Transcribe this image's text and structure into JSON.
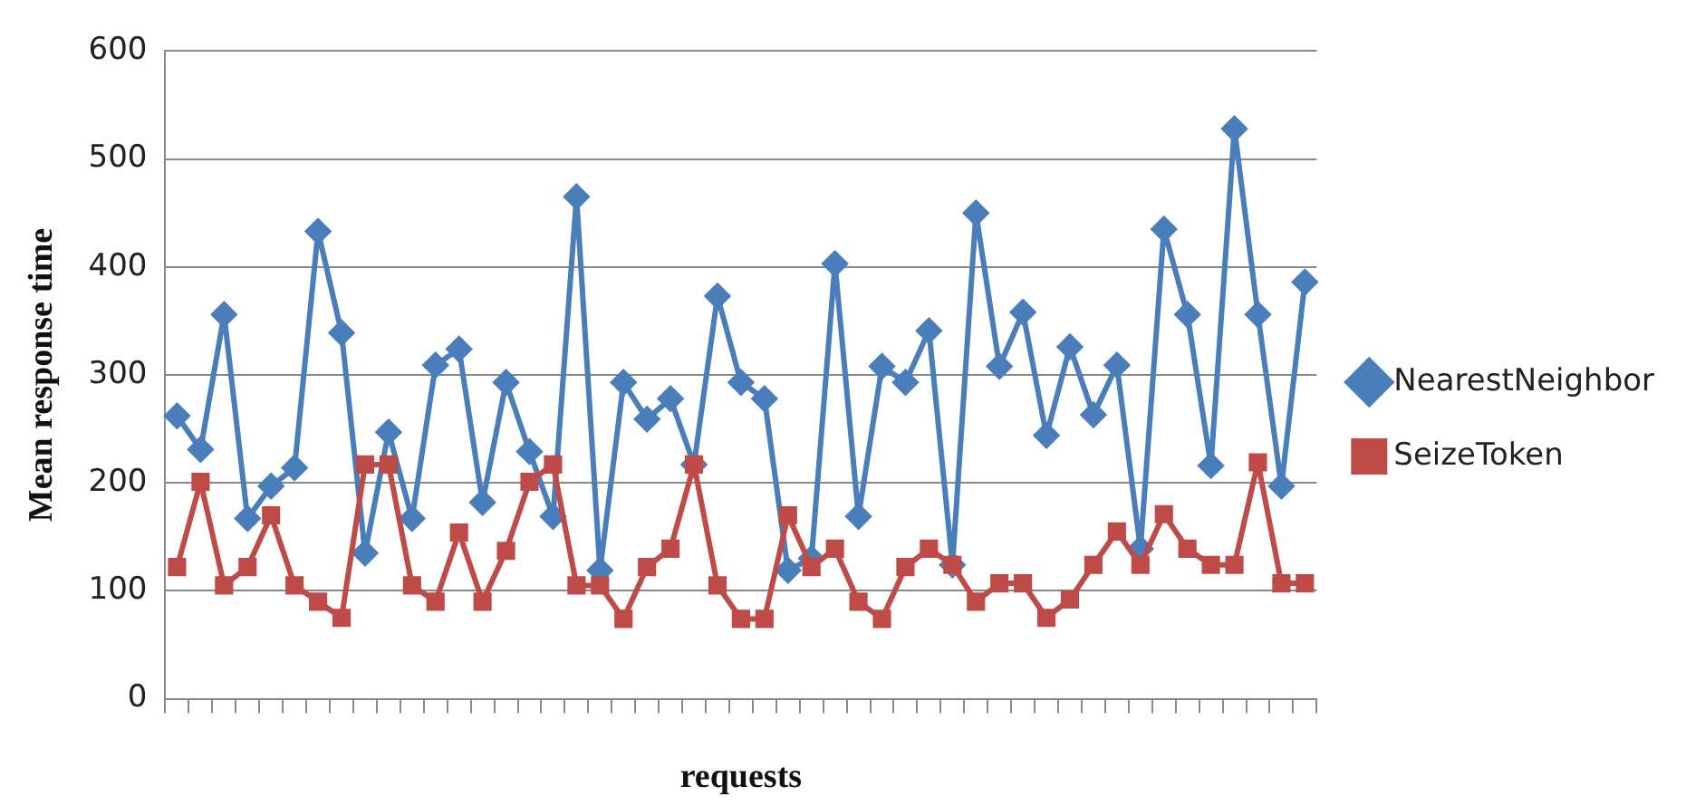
{
  "chart_data": {
    "type": "line",
    "xlabel": "requests",
    "ylabel": "Mean response time",
    "categories": [
      null,
      null,
      null,
      null,
      null,
      null,
      null,
      null,
      null,
      null,
      null,
      null,
      null,
      null,
      null,
      null,
      null,
      null,
      null,
      null,
      null,
      null,
      null,
      null,
      null,
      null,
      null,
      null,
      null,
      null,
      null,
      null,
      null,
      null,
      null,
      null,
      null,
      null,
      null,
      null,
      null,
      null,
      null,
      null,
      null,
      null,
      null,
      null,
      null
    ],
    "series": [
      {
        "name": "NearestNeighbor",
        "color": "#4a7ebb",
        "marker": "diamond",
        "values": [
          262,
          231,
          356,
          167,
          197,
          214,
          433,
          339,
          135,
          247,
          167,
          309,
          324,
          182,
          293,
          229,
          169,
          465,
          119,
          293,
          259,
          278,
          217,
          373,
          293,
          278,
          119,
          130,
          403,
          169,
          308,
          293,
          341,
          124,
          450,
          308,
          358,
          244,
          326,
          263,
          309,
          139,
          435,
          356,
          216,
          528,
          356,
          197,
          386
        ]
      },
      {
        "name": "SeizeToken",
        "color": "#be4b48",
        "marker": "square",
        "values": [
          122,
          201,
          105,
          122,
          170,
          105,
          90,
          75,
          217,
          217,
          105,
          90,
          154,
          90,
          137,
          201,
          217,
          105,
          105,
          74,
          122,
          139,
          217,
          105,
          74,
          74,
          170,
          122,
          139,
          90,
          74,
          122,
          139,
          124,
          90,
          107,
          107,
          75,
          92,
          124,
          155,
          124,
          171,
          139,
          124,
          124,
          219,
          107,
          107
        ]
      }
    ],
    "ylim": [
      0,
      600
    ],
    "yticks": [
      0,
      100,
      200,
      300,
      400,
      500,
      600
    ],
    "grid": "y",
    "legend": "right"
  }
}
